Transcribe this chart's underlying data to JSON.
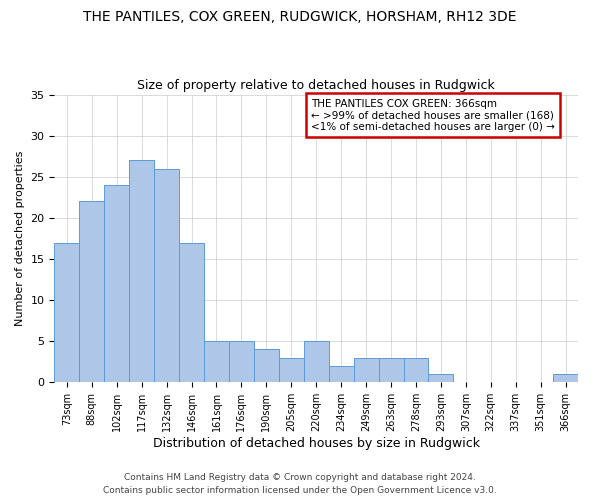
{
  "title": "THE PANTILES, COX GREEN, RUDGWICK, HORSHAM, RH12 3DE",
  "subtitle": "Size of property relative to detached houses in Rudgwick",
  "xlabel": "Distribution of detached houses by size in Rudgwick",
  "ylabel": "Number of detached properties",
  "categories": [
    "73sqm",
    "88sqm",
    "102sqm",
    "117sqm",
    "132sqm",
    "146sqm",
    "161sqm",
    "176sqm",
    "190sqm",
    "205sqm",
    "220sqm",
    "234sqm",
    "249sqm",
    "263sqm",
    "278sqm",
    "293sqm",
    "307sqm",
    "322sqm",
    "337sqm",
    "351sqm",
    "366sqm"
  ],
  "values": [
    17,
    22,
    24,
    27,
    26,
    17,
    5,
    5,
    4,
    3,
    5,
    2,
    3,
    3,
    3,
    1,
    0,
    0,
    0,
    0,
    1
  ],
  "bar_color": "#aec6e8",
  "bar_edge_color": "#5b9bd5",
  "highlight_index": 20,
  "annotation_text": "THE PANTILES COX GREEN: 366sqm\n← >99% of detached houses are smaller (168)\n<1% of semi-detached houses are larger (0) →",
  "annotation_box_edgecolor": "#cc0000",
  "annotation_box_facecolor": "#ffffff",
  "ylim": [
    0,
    35
  ],
  "yticks": [
    0,
    5,
    10,
    15,
    20,
    25,
    30,
    35
  ],
  "footer": "Contains HM Land Registry data © Crown copyright and database right 2024.\nContains public sector information licensed under the Open Government Licence v3.0.",
  "background_color": "#ffffff",
  "grid_color": "#cccccc",
  "title_fontsize": 10,
  "subtitle_fontsize": 9,
  "footer_fontsize": 6.5
}
